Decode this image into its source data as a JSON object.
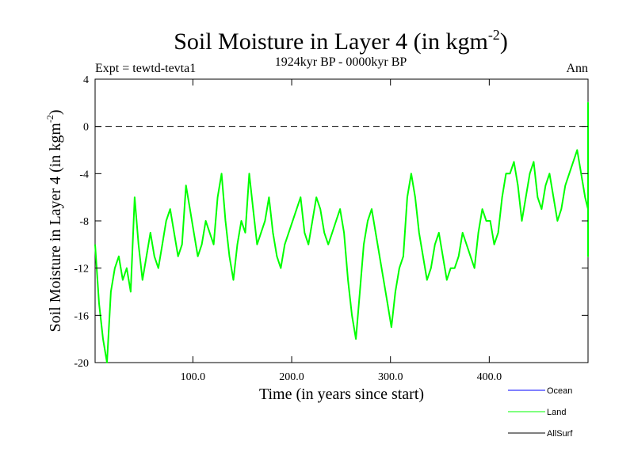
{
  "chart_data": {
    "type": "line",
    "title": "Soil Moisture in Layer 4 (in kgm",
    "title_sup": "-2",
    "title_close": ")",
    "subtitle_left": "Expt = tewtd-tevta1",
    "subtitle_center": "1924kyr BP - 0000kyr BP",
    "subtitle_right": "Ann",
    "xlabel": "Time (in years since start)",
    "ylabel": "Soil Moisture in Layer 4 (in kgm",
    "ylabel_sup": "-2",
    "ylabel_close": ")",
    "xlim": [
      1,
      500
    ],
    "ylim": [
      -20,
      4
    ],
    "xticks": [
      100,
      200,
      300,
      400
    ],
    "xtick_labels": [
      "100.0",
      "200.0",
      "300.0",
      "400.0"
    ],
    "yticks": [
      4,
      0,
      -4,
      -8,
      -12,
      -16,
      -20
    ],
    "ytick_labels": [
      "4",
      "0",
      "-4",
      "-8",
      "-12",
      "-16",
      "-20"
    ],
    "reference_line": 0,
    "colors": {
      "Ocean": "#0000ff",
      "Land": "#00ff00",
      "AllSurf": "#000000"
    },
    "legend": [
      "Ocean",
      "Land",
      "AllSurf"
    ],
    "series": [
      {
        "name": "Land",
        "x_start": 1,
        "x_step": 4,
        "values": [
          -10,
          -15,
          -18,
          -20,
          -14,
          -12,
          -11,
          -13,
          -12,
          -14,
          -6,
          -10,
          -13,
          -11,
          -9,
          -11,
          -12,
          -10,
          -8,
          -7,
          -9,
          -11,
          -10,
          -5,
          -7,
          -9,
          -11,
          -10,
          -8,
          -9,
          -10,
          -6,
          -4,
          -8,
          -11,
          -13,
          -10,
          -8,
          -9,
          -4,
          -7,
          -10,
          -9,
          -8,
          -6,
          -9,
          -11,
          -12,
          -10,
          -9,
          -8,
          -7,
          -6,
          -9,
          -10,
          -8,
          -6,
          -7,
          -9,
          -10,
          -9,
          -8,
          -7,
          -9,
          -13,
          -16,
          -18,
          -14,
          -10,
          -8,
          -7,
          -9,
          -11,
          -13,
          -15,
          -17,
          -14,
          -12,
          -11,
          -6,
          -4,
          -6,
          -9,
          -11,
          -13,
          -12,
          -10,
          -9,
          -11,
          -13,
          -12,
          -12,
          -11,
          -9,
          -10,
          -11,
          -12,
          -9,
          -7,
          -8,
          -8,
          -10,
          -9,
          -6,
          -4,
          -4,
          -3,
          -5,
          -8,
          -6,
          -4,
          -3,
          -6,
          -7,
          -5,
          -4,
          -6,
          -8,
          -7,
          -5,
          -4,
          -3,
          -2,
          -4,
          -6,
          -7,
          -5,
          -3,
          -1,
          -2,
          -5,
          -7,
          -6,
          -4,
          -3,
          -5,
          -6,
          -3,
          -2,
          -4,
          -6,
          -6,
          -8,
          -7,
          -5,
          -4,
          -6,
          -8,
          -7,
          -5,
          -3,
          -2,
          -3,
          -5,
          -7,
          -9,
          -8,
          -6,
          -4,
          -5,
          -7,
          -6,
          -4,
          -3,
          -2,
          -5,
          -7,
          -5,
          -3,
          -2,
          -4,
          -6,
          -8,
          -10,
          -8,
          -6,
          -5,
          -7,
          -9,
          -7,
          -5,
          -4,
          -3,
          -5,
          -7,
          -8,
          -6,
          -4,
          -2,
          -3,
          -5,
          -7,
          -9,
          -6,
          -4,
          -2,
          -1,
          1,
          2,
          -1,
          -3,
          -5,
          -7,
          -6,
          -4,
          -3,
          -5,
          -7,
          -9,
          -10,
          -8,
          -6,
          -5,
          -4,
          -6,
          -8,
          -7,
          -5,
          -3,
          -2,
          -3,
          -5,
          -7,
          -6,
          -4,
          -3,
          -5,
          -7,
          -9,
          -11,
          -8,
          -6,
          -4,
          -3,
          -5,
          -7,
          -6,
          -4,
          -2,
          -3,
          -5,
          -6,
          -4,
          -5,
          -7,
          -8,
          -6,
          -4,
          -3,
          -5,
          -6,
          -5,
          -4,
          -6,
          -8,
          -9,
          -7,
          -5,
          -4,
          -3,
          -5,
          -7,
          -6,
          -4,
          -3,
          -5,
          -7,
          -8,
          -6,
          -4,
          -6,
          -8,
          -9,
          -11,
          -8,
          -6,
          -5,
          -4,
          -3,
          -5,
          -7,
          -6,
          -4,
          -3,
          -4,
          -6,
          -8,
          -6,
          -4,
          2,
          0,
          -3,
          -5,
          -4,
          -6,
          -8,
          -6,
          -3
        ]
      }
    ]
  }
}
